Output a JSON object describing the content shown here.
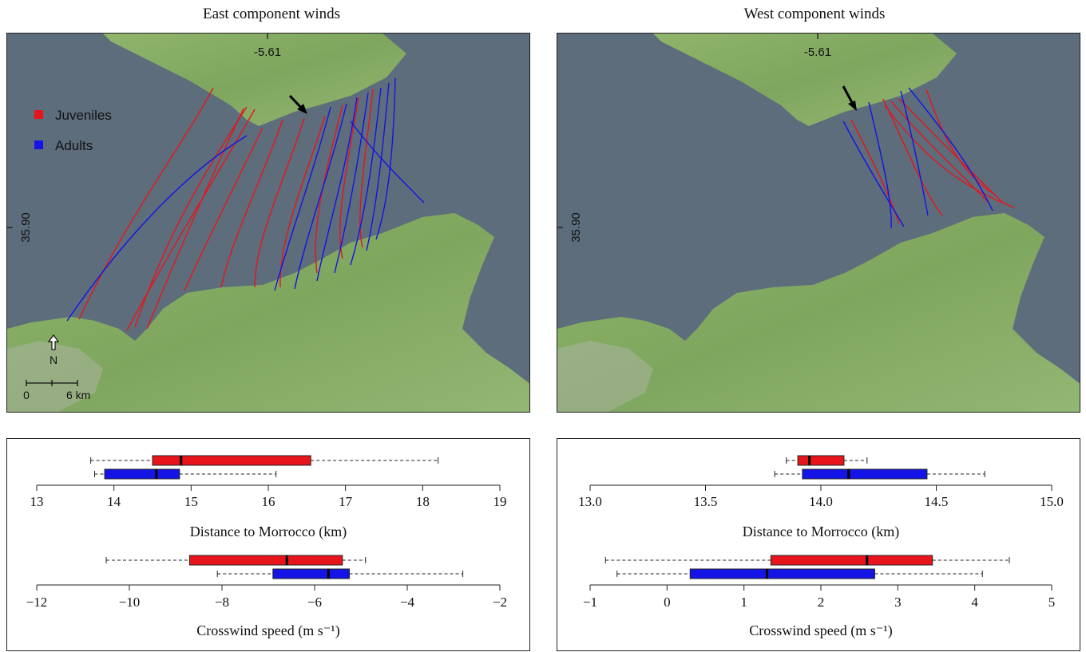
{
  "maps": [
    {
      "title": "East component winds",
      "lon_label": "-5.61",
      "lat_label": "35.90",
      "legend": [
        {
          "label": "Juveniles",
          "color": "#e8141b"
        },
        {
          "label": "Adults",
          "color": "#1414e6"
        }
      ],
      "north_label": "N",
      "scale_left": "0",
      "scale_right": "6 km"
    },
    {
      "title": "West component winds",
      "lon_label": "-5.61",
      "lat_label": "35.90"
    }
  ],
  "chart_data": [
    {
      "type": "boxplot",
      "panel": "East component winds",
      "xlabel": "Distance to Morrocco (km)",
      "xlim": [
        13,
        19
      ],
      "ticks": [
        "13",
        "14",
        "15",
        "16",
        "17",
        "18",
        "19"
      ],
      "series": [
        {
          "color": "#e8141b",
          "whisker_low": 13.7,
          "q1": 14.5,
          "median": 14.87,
          "q3": 16.55,
          "whisker_high": 18.2
        },
        {
          "color": "#1414e6",
          "whisker_low": 13.75,
          "q1": 13.88,
          "median": 14.55,
          "q3": 14.85,
          "whisker_high": 16.1
        }
      ]
    },
    {
      "type": "boxplot",
      "panel": "East component winds",
      "xlabel": "Crosswind speed (m s⁻¹)",
      "xlim": [
        -12,
        -2
      ],
      "ticks": [
        "−12",
        "−10",
        "−8",
        "−6",
        "−4",
        "−2"
      ],
      "series": [
        {
          "color": "#e8141b",
          "whisker_low": -10.5,
          "q1": -8.7,
          "median": -6.6,
          "q3": -5.4,
          "whisker_high": -4.9
        },
        {
          "color": "#1414e6",
          "whisker_low": -8.1,
          "q1": -6.9,
          "median": -5.7,
          "q3": -5.25,
          "whisker_high": -2.8
        }
      ]
    },
    {
      "type": "boxplot",
      "panel": "West component winds",
      "xlabel": "Distance to Morrocco (km)",
      "xlim": [
        13.0,
        15.0
      ],
      "ticks": [
        "13.0",
        "13.5",
        "14.0",
        "14.5",
        "15.0"
      ],
      "series": [
        {
          "color": "#e8141b",
          "whisker_low": 13.85,
          "q1": 13.9,
          "median": 13.95,
          "q3": 14.1,
          "whisker_high": 14.2
        },
        {
          "color": "#1414e6",
          "whisker_low": 13.8,
          "q1": 13.92,
          "median": 14.12,
          "q3": 14.46,
          "whisker_high": 14.71
        }
      ]
    },
    {
      "type": "boxplot",
      "panel": "West component winds",
      "xlabel": "Crosswind speed (m s⁻¹)",
      "xlim": [
        -1,
        5
      ],
      "ticks": [
        "−1",
        "0",
        "1",
        "2",
        "3",
        "4",
        "5"
      ],
      "series": [
        {
          "color": "#e8141b",
          "whisker_low": -0.8,
          "q1": 1.35,
          "median": 2.6,
          "q3": 3.45,
          "whisker_high": 4.45
        },
        {
          "color": "#1414e6",
          "whisker_low": -0.65,
          "q1": 0.3,
          "median": 1.3,
          "q3": 2.7,
          "whisker_high": 4.1
        }
      ]
    }
  ]
}
